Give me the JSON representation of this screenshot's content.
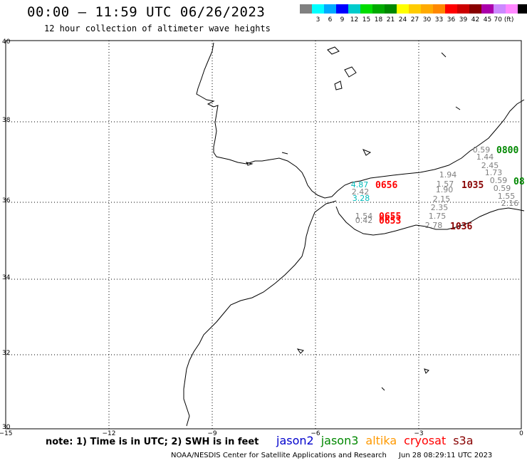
{
  "header": {
    "title": "00:00 – 11:59 UTC 06/26/2023",
    "subtitle": "12 hour collection of altimeter wave heights"
  },
  "colorbar": {
    "colors": [
      "#808080",
      "#00ffff",
      "#00aaff",
      "#0000ff",
      "#00cccc",
      "#00dd00",
      "#00aa00",
      "#008800",
      "#ffff00",
      "#ffcc00",
      "#ffaa00",
      "#ff8800",
      "#ff0000",
      "#cc0000",
      "#880000",
      "#aa00aa",
      "#cc88ff",
      "#ff88ff",
      "#000000"
    ],
    "labels": [
      "3",
      "6",
      "9",
      "12",
      "15",
      "18",
      "21",
      "24",
      "27",
      "30",
      "33",
      "36",
      "39",
      "42",
      "45",
      "70 (ft)"
    ]
  },
  "map": {
    "lon_range": [
      -15,
      0
    ],
    "lat_range": [
      30,
      40
    ],
    "x_ticks": [
      "−15",
      "−12",
      "−9",
      "−6",
      "−3",
      "0"
    ],
    "y_ticks": [
      "40",
      "38",
      "36",
      "34",
      "32",
      "30"
    ],
    "grid": "dotted"
  },
  "observations": [
    {
      "text": "0.59",
      "color": "#808080"
    },
    {
      "text": "1.44",
      "color": "#808080"
    },
    {
      "text": "2.45",
      "color": "#808080"
    },
    {
      "text": "1.73",
      "color": "#808080"
    },
    {
      "text": "0.59",
      "color": "#808080"
    },
    {
      "text": "0.59",
      "color": "#808080"
    },
    {
      "text": "1.55",
      "color": "#808080"
    },
    {
      "text": "2.16",
      "color": "#808080"
    },
    {
      "text": "1.94",
      "color": "#808080"
    },
    {
      "text": "1.57",
      "color": "#808080"
    },
    {
      "text": "1.90",
      "color": "#808080"
    },
    {
      "text": "2.15",
      "color": "#808080"
    },
    {
      "text": "2.35",
      "color": "#808080"
    },
    {
      "text": "1.75",
      "color": "#808080"
    },
    {
      "text": "2.78",
      "color": "#808080"
    },
    {
      "text": "4.87",
      "color": "#00bbbb"
    },
    {
      "text": "2.42",
      "color": "#808080"
    },
    {
      "text": "3.28",
      "color": "#00bbbb"
    },
    {
      "text": "1.54",
      "color": "#808080"
    },
    {
      "text": "0.42",
      "color": "#808080"
    }
  ],
  "time_labels": [
    {
      "text": "0800",
      "color": "#008800"
    },
    {
      "text": "08",
      "color": "#008800"
    },
    {
      "text": "1035",
      "color": "#880000"
    },
    {
      "text": "1036",
      "color": "#880000"
    },
    {
      "text": "0656",
      "color": "#ff0000"
    },
    {
      "text": "0655",
      "color": "#ff0000"
    },
    {
      "text": "0653",
      "color": "#ff0000"
    }
  ],
  "note": "note: 1) Time is in UTC; 2) SWH is in feet",
  "legend": [
    {
      "name": "jason2",
      "color": "#0000cc"
    },
    {
      "name": "jason3",
      "color": "#008800"
    },
    {
      "name": "altika",
      "color": "#ff9900"
    },
    {
      "name": "cryosat",
      "color": "#ff0000"
    },
    {
      "name": "s3a",
      "color": "#880000"
    }
  ],
  "footer": {
    "credit": "NOAA/NESDIS Center for Satellite Applications and Research",
    "timestamp": "Jun 28 08:29:11 UTC 2023"
  }
}
